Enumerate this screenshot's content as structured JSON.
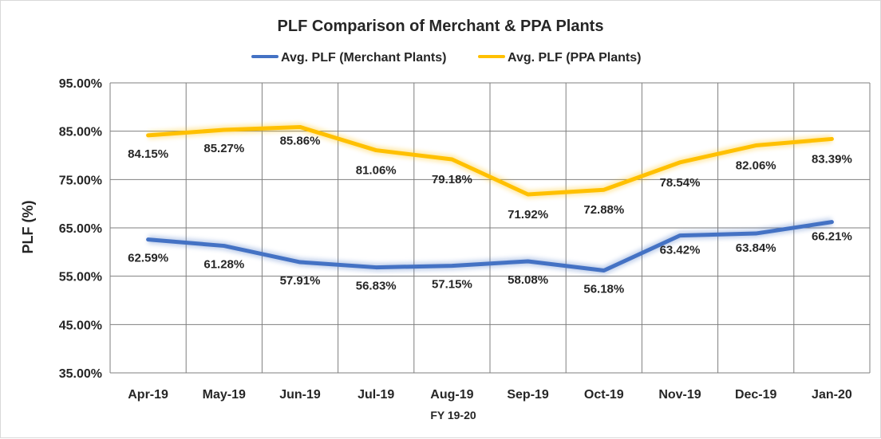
{
  "chart_data": {
    "type": "line",
    "title": "PLF Comparison of Merchant & PPA Plants",
    "xlabel": "FY 19-20",
    "ylabel": "PLF (%)",
    "categories": [
      "Apr-19",
      "May-19",
      "Jun-19",
      "Jul-19",
      "Aug-19",
      "Sep-19",
      "Oct-19",
      "Nov-19",
      "Dec-19",
      "Jan-20"
    ],
    "ylim": [
      35,
      95
    ],
    "yticks": [
      35,
      45,
      55,
      65,
      75,
      85,
      95
    ],
    "ytick_labels": [
      "35.00%",
      "45.00%",
      "55.00%",
      "65.00%",
      "75.00%",
      "85.00%",
      "95.00%"
    ],
    "grid": true,
    "legend_position": "top",
    "series": [
      {
        "name": "Avg. PLF (Merchant Plants)",
        "color": "#4472c4",
        "values": [
          62.59,
          61.28,
          57.91,
          56.83,
          57.15,
          58.08,
          56.18,
          63.42,
          63.84,
          66.21
        ],
        "labels": [
          "62.59%",
          "61.28%",
          "57.91%",
          "56.83%",
          "57.15%",
          "58.08%",
          "56.18%",
          "63.42%",
          "63.84%",
          "66.21%"
        ]
      },
      {
        "name": "Avg. PLF (PPA Plants)",
        "color": "#ffc000",
        "values": [
          84.15,
          85.27,
          85.86,
          81.06,
          79.18,
          71.92,
          72.88,
          78.54,
          82.06,
          83.39
        ],
        "labels": [
          "84.15%",
          "85.27%",
          "85.86%",
          "81.06%",
          "79.18%",
          "71.92%",
          "72.88%",
          "78.54%",
          "82.06%",
          "83.39%"
        ]
      }
    ]
  }
}
